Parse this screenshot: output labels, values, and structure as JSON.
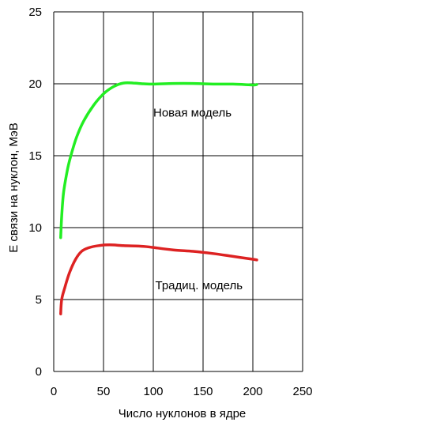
{
  "chart_data": {
    "type": "line",
    "title": "",
    "xlabel": "Число нуклонов в ядре",
    "ylabel": "E связи на нуклон, МэВ",
    "xlim": [
      0,
      250
    ],
    "ylim": [
      0,
      25
    ],
    "xticks": [
      0,
      50,
      100,
      150,
      200,
      250
    ],
    "yticks": [
      0,
      5,
      10,
      15,
      20,
      25
    ],
    "grid": true,
    "legend": "none",
    "series": [
      {
        "name": "Новая модель",
        "color": "#22ee22",
        "points": [
          [
            7,
            9.3
          ],
          [
            8,
            10.8
          ],
          [
            10,
            12.5
          ],
          [
            14,
            14.1
          ],
          [
            18,
            15.2
          ],
          [
            23,
            16.3
          ],
          [
            30,
            17.4
          ],
          [
            40,
            18.5
          ],
          [
            50,
            19.3
          ],
          [
            60,
            19.8
          ],
          [
            70,
            20.05
          ],
          [
            80,
            20.05
          ],
          [
            90,
            20.0
          ],
          [
            100,
            19.98
          ],
          [
            120,
            20.02
          ],
          [
            140,
            20.02
          ],
          [
            160,
            19.98
          ],
          [
            180,
            19.98
          ],
          [
            200,
            19.92
          ],
          [
            204,
            19.95
          ]
        ]
      },
      {
        "name": "Традиц. модель",
        "color": "#dd2222",
        "points": [
          [
            7,
            4.0
          ],
          [
            8,
            5.0
          ],
          [
            11,
            5.8
          ],
          [
            16,
            6.9
          ],
          [
            22,
            7.8
          ],
          [
            28,
            8.35
          ],
          [
            35,
            8.6
          ],
          [
            45,
            8.75
          ],
          [
            56,
            8.8
          ],
          [
            70,
            8.75
          ],
          [
            90,
            8.7
          ],
          [
            100,
            8.62
          ],
          [
            120,
            8.45
          ],
          [
            140,
            8.35
          ],
          [
            160,
            8.2
          ],
          [
            180,
            8.0
          ],
          [
            200,
            7.8
          ],
          [
            204,
            7.75
          ]
        ]
      }
    ],
    "annotations": [
      {
        "text": "Новая модель",
        "x": 100,
        "y": 18
      },
      {
        "text": "Традиц. модель",
        "x": 102,
        "y": 6
      }
    ]
  }
}
